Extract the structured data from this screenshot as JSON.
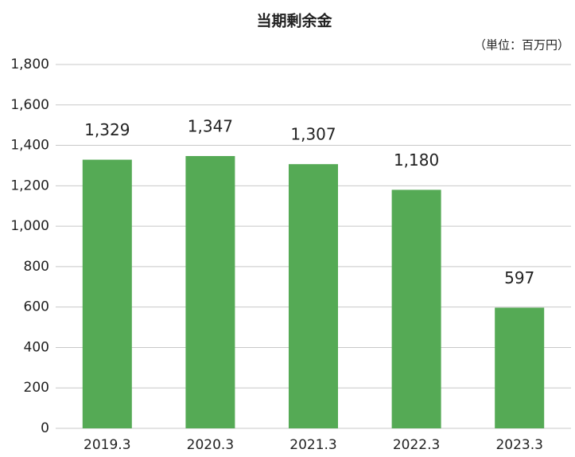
{
  "chart_data": {
    "type": "bar",
    "title": "当期剰余金",
    "subtitle": "（単位：百万円）",
    "categories": [
      "2019.3",
      "2020.3",
      "2021.3",
      "2022.3",
      "2023.3"
    ],
    "values": [
      1329,
      1347,
      1307,
      1180,
      597
    ],
    "value_labels": [
      "1,329",
      "1,347",
      "1,307",
      "1,180",
      "597"
    ],
    "color": "#55aa55",
    "ylim": [
      0,
      1800
    ],
    "yticks": [
      0,
      200,
      400,
      600,
      800,
      {
        "value": 1000,
        "label": "1,000"
      },
      {
        "value": 1200,
        "label": "1,200"
      },
      {
        "value": 1400,
        "label": "1,400"
      },
      {
        "value": 1600,
        "label": "1,600"
      },
      {
        "value": 1800,
        "label": "1,800"
      }
    ],
    "grid": true
  }
}
